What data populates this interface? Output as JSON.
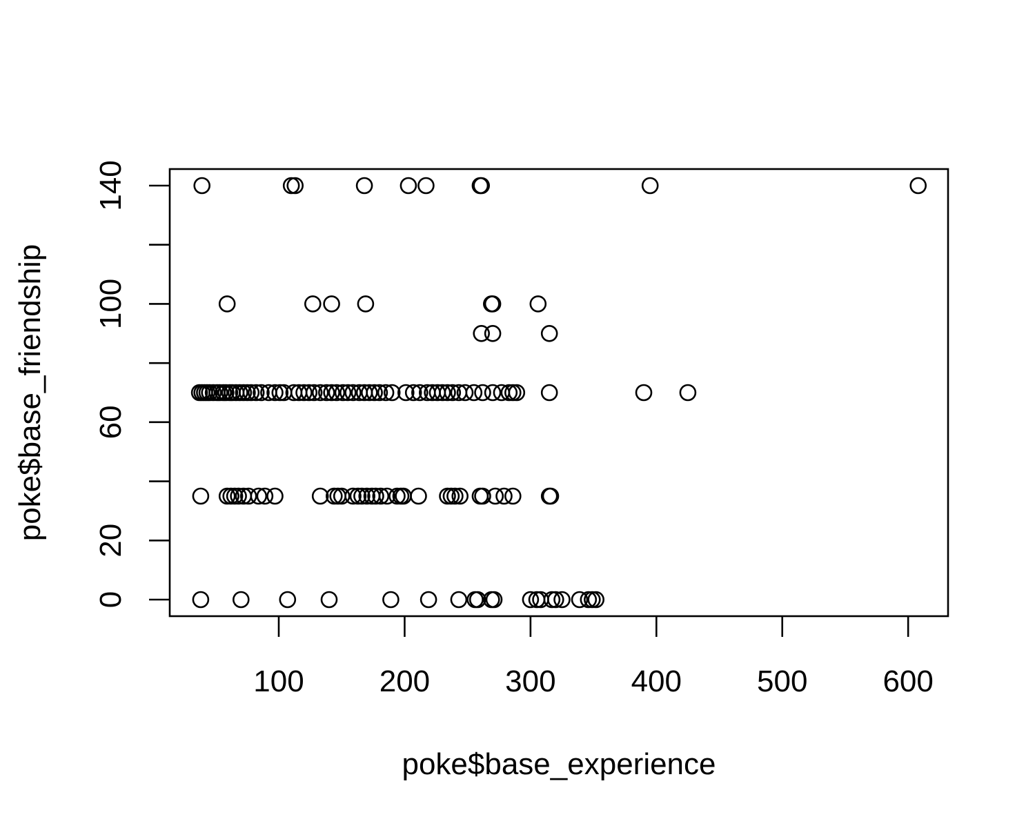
{
  "chart_data": {
    "type": "scatter",
    "title": "",
    "xlabel": "poke$base_experience",
    "ylabel": "poke$base_friendship",
    "xlim": [
      20,
      630
    ],
    "ylim": [
      -5,
      146
    ],
    "xticks": [
      100,
      200,
      300,
      400,
      500,
      600
    ],
    "yticks": [
      0,
      20,
      40,
      60,
      80,
      100,
      120,
      140
    ],
    "ytick_labels": [
      "0",
      "20",
      "",
      "60",
      "",
      "100",
      "",
      "140"
    ],
    "grid": false,
    "point_color": "#000000",
    "marker": "open-circle",
    "series": [
      {
        "points": [
          [
            39,
            140
          ],
          [
            110,
            140
          ],
          [
            113,
            140
          ],
          [
            168,
            140
          ],
          [
            203,
            140
          ],
          [
            217,
            140
          ],
          [
            260,
            140
          ],
          [
            261,
            140
          ],
          [
            395,
            140
          ],
          [
            608,
            140
          ],
          [
            59,
            100
          ],
          [
            127,
            100
          ],
          [
            142,
            100
          ],
          [
            169,
            100
          ],
          [
            269,
            100
          ],
          [
            270,
            100
          ],
          [
            306,
            100
          ],
          [
            261,
            90
          ],
          [
            270,
            90
          ],
          [
            315,
            90
          ],
          [
            37,
            70
          ],
          [
            39,
            70
          ],
          [
            41,
            70
          ],
          [
            43,
            70
          ],
          [
            45,
            70
          ],
          [
            48,
            70
          ],
          [
            51,
            70
          ],
          [
            53,
            70
          ],
          [
            56,
            70
          ],
          [
            58,
            70
          ],
          [
            61,
            70
          ],
          [
            63,
            70
          ],
          [
            66,
            70
          ],
          [
            69,
            70
          ],
          [
            72,
            70
          ],
          [
            75,
            70
          ],
          [
            78,
            70
          ],
          [
            82,
            70
          ],
          [
            86,
            70
          ],
          [
            92,
            70
          ],
          [
            97,
            70
          ],
          [
            101,
            70
          ],
          [
            104,
            70
          ],
          [
            112,
            70
          ],
          [
            116,
            70
          ],
          [
            120,
            70
          ],
          [
            124,
            70
          ],
          [
            128,
            70
          ],
          [
            133,
            70
          ],
          [
            138,
            70
          ],
          [
            142,
            70
          ],
          [
            146,
            70
          ],
          [
            151,
            70
          ],
          [
            155,
            70
          ],
          [
            159,
            70
          ],
          [
            164,
            70
          ],
          [
            168,
            70
          ],
          [
            172,
            70
          ],
          [
            176,
            70
          ],
          [
            180,
            70
          ],
          [
            185,
            70
          ],
          [
            190,
            70
          ],
          [
            201,
            70
          ],
          [
            207,
            70
          ],
          [
            212,
            70
          ],
          [
            218,
            70
          ],
          [
            222,
            70
          ],
          [
            226,
            70
          ],
          [
            230,
            70
          ],
          [
            234,
            70
          ],
          [
            238,
            70
          ],
          [
            243,
            70
          ],
          [
            248,
            70
          ],
          [
            255,
            70
          ],
          [
            262,
            70
          ],
          [
            270,
            70
          ],
          [
            277,
            70
          ],
          [
            283,
            70
          ],
          [
            286,
            70
          ],
          [
            289,
            70
          ],
          [
            315,
            70
          ],
          [
            390,
            70
          ],
          [
            425,
            70
          ],
          [
            38,
            35
          ],
          [
            59,
            35
          ],
          [
            62,
            35
          ],
          [
            65,
            35
          ],
          [
            68,
            35
          ],
          [
            72,
            35
          ],
          [
            76,
            35
          ],
          [
            84,
            35
          ],
          [
            89,
            35
          ],
          [
            97,
            35
          ],
          [
            133,
            35
          ],
          [
            144,
            35
          ],
          [
            147,
            35
          ],
          [
            150,
            35
          ],
          [
            159,
            35
          ],
          [
            163,
            35
          ],
          [
            166,
            35
          ],
          [
            170,
            35
          ],
          [
            174,
            35
          ],
          [
            177,
            35
          ],
          [
            181,
            35
          ],
          [
            186,
            35
          ],
          [
            194,
            35
          ],
          [
            197,
            35
          ],
          [
            199,
            35
          ],
          [
            211,
            35
          ],
          [
            234,
            35
          ],
          [
            237,
            35
          ],
          [
            240,
            35
          ],
          [
            244,
            35
          ],
          [
            260,
            35
          ],
          [
            262,
            35
          ],
          [
            272,
            35
          ],
          [
            279,
            35
          ],
          [
            286,
            35
          ],
          [
            315,
            35
          ],
          [
            316,
            35
          ],
          [
            38,
            0
          ],
          [
            70,
            0
          ],
          [
            107,
            0
          ],
          [
            140,
            0
          ],
          [
            189,
            0
          ],
          [
            219,
            0
          ],
          [
            243,
            0
          ],
          [
            256,
            0
          ],
          [
            258,
            0
          ],
          [
            269,
            0
          ],
          [
            271,
            0
          ],
          [
            300,
            0
          ],
          [
            305,
            0
          ],
          [
            308,
            0
          ],
          [
            317,
            0
          ],
          [
            320,
            0
          ],
          [
            325,
            0
          ],
          [
            339,
            0
          ],
          [
            346,
            0
          ],
          [
            349,
            0
          ],
          [
            352,
            0
          ]
        ]
      }
    ]
  }
}
